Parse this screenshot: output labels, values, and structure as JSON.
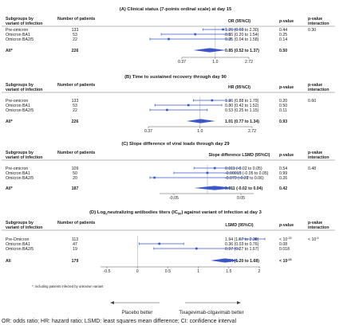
{
  "footnote": "OR: odds ratio; HR: hazard ratio; LSMD: least squares mean difference; CI: confidence interval",
  "asterisk_note": "*: including patients infected by unknown variant",
  "direction": {
    "left": "Placebo better",
    "right": "Tixagevimab-cilgavimab better"
  },
  "chart_data": [
    {
      "type": "forest",
      "title": "(A) Clinical status (7-points ordinal scale) at day 15",
      "col_group": "Subgroups by variant of infection",
      "col_n": "Number of patients",
      "col_est": "OR (95%CI)",
      "col_p": "p-value",
      "col_pint": "p-value interaction",
      "axis": {
        "scale": "log",
        "ticks": [
          "0.37",
          "1.0",
          "2.72"
        ],
        "tick_values": [
          0.37,
          1.0,
          2.72
        ],
        "range": [
          0.1,
          7.0
        ],
        "null_value": 1.0
      },
      "rows": [
        {
          "label": "Pre-omicron",
          "n": "133",
          "est_text": "1.26 (0.69 to 2.30)",
          "p": "0.44",
          "pint": "0.30",
          "est": 1.26,
          "lo": 0.69,
          "hi": 2.3
        },
        {
          "label": "Omicron BA1",
          "n": "53",
          "est_text": "0.55 (0.20 to 1.54)",
          "p": "0.25",
          "pint": "",
          "est": 0.55,
          "lo": 0.2,
          "hi": 1.54
        },
        {
          "label": "Omicron BA2/5",
          "n": "22",
          "est_text": "0.25 (0.04 to 1.58)",
          "p": "0.14",
          "pint": "",
          "est": 0.25,
          "lo": 0.04,
          "hi": 1.58
        }
      ],
      "overall": {
        "label": "All*",
        "n": "226",
        "est_text": "0.85 (0.52 to 1.37)",
        "p": "0.50",
        "est": 0.85,
        "lo": 0.52,
        "hi": 1.37
      }
    },
    {
      "type": "forest",
      "title": "(B) Time to sustained recovery through day 90",
      "col_group": "Subgroups by variant of infection",
      "col_n": "Number of patients",
      "col_est": "HR (95%CI)",
      "col_p": "p-value",
      "col_pint": "p-value interaction",
      "axis": {
        "scale": "log",
        "ticks": [
          "0.37",
          "1.0",
          "2.72"
        ],
        "tick_values": [
          0.37,
          1.0,
          2.72
        ],
        "range": [
          0.37,
          2.72
        ],
        "null_value": 1.0
      },
      "rows": [
        {
          "label": "Pre-omicron",
          "n": "133",
          "est_text": "1.26 (0.88 to 1.79)",
          "p": "0.20",
          "pint": "0.60",
          "est": 1.26,
          "lo": 0.88,
          "hi": 1.79
        },
        {
          "label": "Omicron BA1",
          "n": "53",
          "est_text": "0.80 (0.42 to 1.52)",
          "p": "0.50",
          "pint": "",
          "est": 0.8,
          "lo": 0.42,
          "hi": 1.52
        },
        {
          "label": "Omicron BA2/5",
          "n": "22",
          "est_text": "0.53 (0.25 to 1.15)",
          "p": "0.11",
          "pint": "",
          "est": 0.53,
          "lo": 0.25,
          "hi": 1.15
        }
      ],
      "overall": {
        "label": "All*",
        "n": "226",
        "est_text": "1.01 (0.77 to 1.34)",
        "p": "0.93",
        "est": 1.01,
        "lo": 0.77,
        "hi": 1.34
      }
    },
    {
      "type": "forest",
      "title": "(C) Slope difference of viral loads through day 29",
      "col_group": "Subgroups by variant of infection",
      "col_n": "Number of patients",
      "col_est": "Slope difference LSMD (95%CI)",
      "col_p": "p-value",
      "col_pint": "p-value interaction",
      "axis": {
        "scale": "linear",
        "ticks": [
          "-0.05",
          "0.05"
        ],
        "tick_values": [
          -0.05,
          0.05
        ],
        "range": [
          -0.1,
          0.1
        ],
        "null_value": 0
      },
      "rows": [
        {
          "label": "Pre-omicron",
          "n": "109",
          "est_text": "0.011 (-0.02 to 0.05)",
          "p": "0.54",
          "pint": "0.48",
          "est": 0.011,
          "lo": -0.02,
          "hi": 0.05
        },
        {
          "label": "Omicron BA1",
          "n": "50",
          "est_text": "-0.00015 (-0.05 to 0.05)",
          "p": "0.99",
          "pint": "",
          "est": -0.00015,
          "lo": -0.05,
          "hi": 0.05
        },
        {
          "label": "Omicron BA2/5",
          "n": "20",
          "est_text": "-0.079 (-0.22 to 0.06)",
          "p": "0.26",
          "pint": "",
          "est": -0.079,
          "lo": -0.22,
          "hi": 0.06
        }
      ],
      "overall": {
        "label": "All*",
        "n": "187",
        "est_text": "0.011 (-0.02 to 0.04)",
        "p": "0.42",
        "est": 0.011,
        "lo": -0.02,
        "hi": 0.04
      }
    },
    {
      "type": "forest",
      "title": "(D) Log",
      "title_sub": "2",
      "title_rest": "neutralizing antibodies titers (IC",
      "title_sub2": "50",
      "title_end": ") against variant of infection at day 3",
      "col_group": "Subgroups by variant of infection",
      "col_n": "Number of patients",
      "col_est": "LSMD (95%CI)",
      "col_p": "p-value",
      "col_pint": "p-value interaction",
      "axis": {
        "scale": "linear",
        "ticks": [
          "-0.5",
          "0",
          "0.5",
          "1",
          "1.5",
          "2"
        ],
        "tick_values": [
          -0.5,
          0,
          0.5,
          1,
          1.5,
          2
        ],
        "range": [
          -0.5,
          2.2
        ],
        "null_value": 0
      },
      "rows": [
        {
          "label": "Pre-Omicron",
          "n": "113",
          "est_text": "1.94 (1.67 to 2.20)",
          "p_base": "< 10",
          "p_exp": "-28",
          "pint_base": "< 10",
          "pint_exp": "-5",
          "est": 1.94,
          "lo": 1.67,
          "hi": 2.2
        },
        {
          "label": "Omicron BA1",
          "n": "47",
          "est_text": "0.36 (0.03 to 0.76)",
          "p": "0.08",
          "pint": "",
          "est": 0.36,
          "lo": 0.03,
          "hi": 0.76
        },
        {
          "label": "Omicron BA2/5",
          "n": "19",
          "est_text": "0.97 (0.27 to 1.67)",
          "p": "0.018",
          "pint": "",
          "est": 0.97,
          "lo": 0.27,
          "hi": 1.67
        }
      ],
      "overall": {
        "label": "All",
        "n": "179",
        "est_text": "1.44 (1.20 to 1.68)",
        "p_base": "< 10",
        "p_exp": "-23",
        "est": 1.44,
        "lo": 1.2,
        "hi": 1.68
      }
    }
  ]
}
